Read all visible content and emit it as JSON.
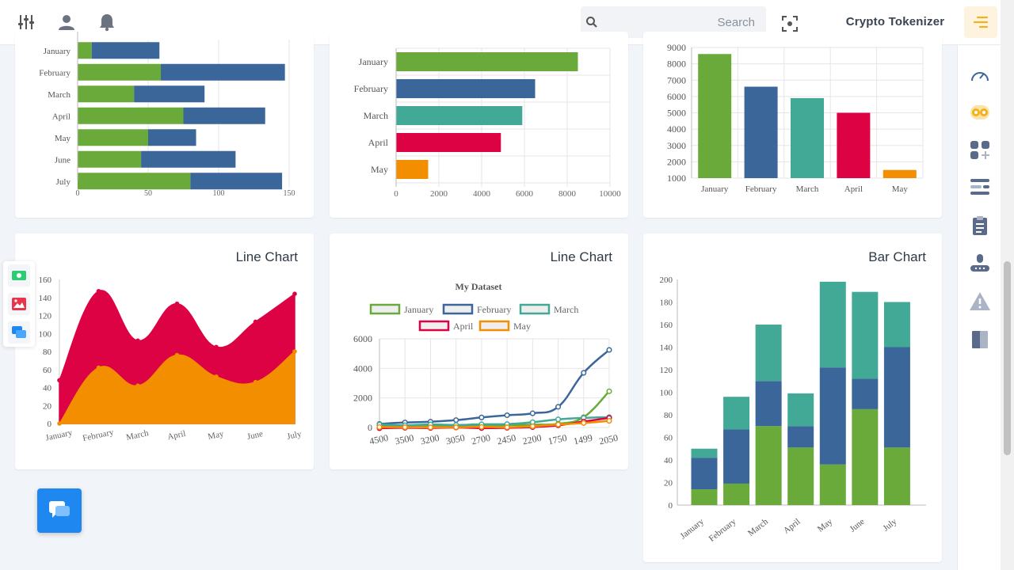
{
  "header": {
    "icons": [
      "sliders-icon",
      "user-icon",
      "bell-icon"
    ],
    "search_placeholder": "Search",
    "brand": "Crypto Tokenizer"
  },
  "sidebar_icons": [
    "speedometer-icon",
    "coins-icon",
    "apps-icon",
    "list-icon",
    "clipboard-icon",
    "mouse-icon",
    "warning-icon",
    "book-icon"
  ],
  "floating_panel": [
    "money-icon",
    "image-icon",
    "chat-icon"
  ],
  "colors": {
    "green": "#6aaa3a",
    "blue": "#3a6699",
    "teal": "#42a997",
    "red": "#dd0244",
    "orange": "#f28e00",
    "accent": "#f2b21c",
    "fab": "#1e88f0"
  },
  "cards": {
    "line1": {
      "title": "Line Chart"
    },
    "line2": {
      "title": "Line Chart"
    },
    "bar": {
      "title": "Bar Chart"
    }
  },
  "chart_data": [
    {
      "type": "bar",
      "orientation": "horizontal",
      "stacked": true,
      "categories": [
        "January",
        "February",
        "March",
        "April",
        "May",
        "June",
        "July"
      ],
      "series": [
        {
          "values": [
            10,
            59,
            40,
            75,
            50,
            45,
            80
          ],
          "color": "#6aaa3a"
        },
        {
          "values": [
            48,
            88,
            50,
            58,
            34,
            67,
            65
          ],
          "color": "#3a6699"
        }
      ],
      "xlim": [
        0,
        150
      ],
      "xticks": [
        0,
        50,
        100,
        150
      ]
    },
    {
      "type": "bar",
      "orientation": "horizontal",
      "categories": [
        "January",
        "February",
        "March",
        "April",
        "May"
      ],
      "values": [
        8500,
        6500,
        5900,
        4900,
        1500
      ],
      "colors": [
        "#6aaa3a",
        "#3a6699",
        "#42a997",
        "#dd0244",
        "#f28e00"
      ],
      "xlim": [
        0,
        10000
      ],
      "xticks": [
        0,
        2000,
        4000,
        6000,
        8000,
        10000
      ]
    },
    {
      "type": "bar",
      "categories": [
        "January",
        "February",
        "March",
        "April",
        "May"
      ],
      "values": [
        8600,
        6600,
        5900,
        5000,
        1500
      ],
      "colors": [
        "#6aaa3a",
        "#3a6699",
        "#42a997",
        "#dd0244",
        "#f28e00"
      ],
      "ylim": [
        1000,
        9000
      ],
      "yticks": [
        1000,
        2000,
        3000,
        4000,
        5000,
        6000,
        7000,
        8000,
        9000
      ]
    },
    {
      "type": "area",
      "title": "Line Chart",
      "categories": [
        "January",
        "February",
        "March",
        "April",
        "May",
        "June",
        "July"
      ],
      "series": [
        {
          "values": [
            48,
            147,
            92,
            133,
            85,
            113,
            144
          ],
          "color": "#dd0244"
        },
        {
          "values": [
            0,
            62,
            42,
            76,
            52,
            46,
            80
          ],
          "color": "#f28e00"
        }
      ],
      "ylim": [
        0,
        160
      ],
      "yticks": [
        0,
        20,
        40,
        60,
        80,
        100,
        120,
        140,
        160
      ]
    },
    {
      "type": "line",
      "title": "My Dataset",
      "categories": [
        "4500",
        "3500",
        "3200",
        "3050",
        "2700",
        "2450",
        "2200",
        "1750",
        "1499",
        "2050"
      ],
      "series": [
        {
          "name": "January",
          "values": [
            150,
            130,
            120,
            130,
            110,
            160,
            190,
            250,
            700,
            2450
          ],
          "color": "#6aaa3a"
        },
        {
          "name": "February",
          "values": [
            240,
            340,
            390,
            500,
            680,
            830,
            960,
            1400,
            3700,
            5250
          ],
          "color": "#3a6699"
        },
        {
          "name": "March",
          "values": [
            200,
            150,
            210,
            170,
            220,
            230,
            360,
            550,
            650,
            700
          ],
          "color": "#42a997"
        },
        {
          "name": "April",
          "values": [
            -50,
            -20,
            -30,
            0,
            -40,
            -20,
            30,
            150,
            400,
            650
          ],
          "color": "#dd0244"
        },
        {
          "name": "May",
          "values": [
            30,
            20,
            10,
            20,
            40,
            20,
            80,
            200,
            300,
            450
          ],
          "color": "#f28e00"
        }
      ],
      "ylim": [
        0,
        6000
      ],
      "yticks": [
        0,
        2000,
        4000,
        6000
      ]
    },
    {
      "type": "bar",
      "stacked": true,
      "title": "Bar Chart",
      "categories": [
        "January",
        "February",
        "March",
        "April",
        "May",
        "June",
        "July"
      ],
      "series": [
        {
          "values": [
            14,
            19,
            70,
            51,
            36,
            85,
            51
          ],
          "color": "#6aaa3a"
        },
        {
          "values": [
            28,
            48,
            40,
            19,
            86,
            27,
            89
          ],
          "color": "#3a6699"
        },
        {
          "values": [
            8,
            29,
            50,
            29,
            76,
            77,
            40
          ],
          "color": "#42a997"
        }
      ],
      "ylim": [
        0,
        200
      ],
      "yticks": [
        0,
        20,
        40,
        60,
        80,
        100,
        120,
        140,
        160,
        180,
        200
      ]
    }
  ]
}
